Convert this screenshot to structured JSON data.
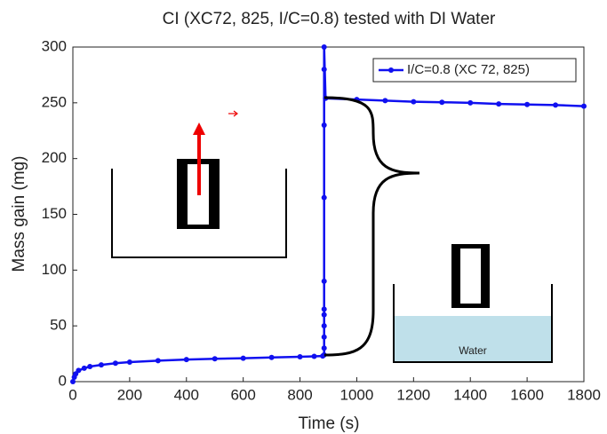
{
  "chart_data": {
    "type": "line",
    "title": "CI (XC72, 825, I/C=0.8) tested with DI Water",
    "x_label": "Time (s)",
    "y_label": "Mass gain (mg)",
    "xlim": [
      0,
      1800
    ],
    "xticks": [
      0,
      200,
      400,
      600,
      800,
      1000,
      1200,
      1400,
      1600,
      1800
    ],
    "ylim": [
      0,
      300
    ],
    "yticks": [
      0,
      50,
      100,
      150,
      200,
      250,
      300
    ],
    "legend_position": "upper right",
    "annotations": [
      "Water"
    ],
    "series": [
      {
        "name": "I/C=0.8 (XC 72, 825)",
        "color": "#1010f0",
        "x": [
          0,
          5,
          10,
          20,
          40,
          60,
          100,
          150,
          200,
          300,
          400,
          500,
          600,
          700,
          800,
          850,
          880,
          885,
          885,
          885,
          885,
          885,
          885,
          885,
          885,
          885,
          885,
          885,
          890,
          1000,
          1100,
          1200,
          1300,
          1400,
          1500,
          1600,
          1700,
          1800
        ],
        "values": [
          0,
          4,
          7,
          10,
          12,
          13.5,
          15,
          16.5,
          17.5,
          18.8,
          19.8,
          20.5,
          21,
          21.7,
          22.3,
          22.7,
          23,
          24,
          30,
          40,
          50,
          60,
          65,
          90,
          165,
          230,
          280,
          300,
          254,
          253,
          252,
          251,
          250.5,
          250,
          249,
          248.5,
          248,
          247
        ]
      }
    ]
  }
}
